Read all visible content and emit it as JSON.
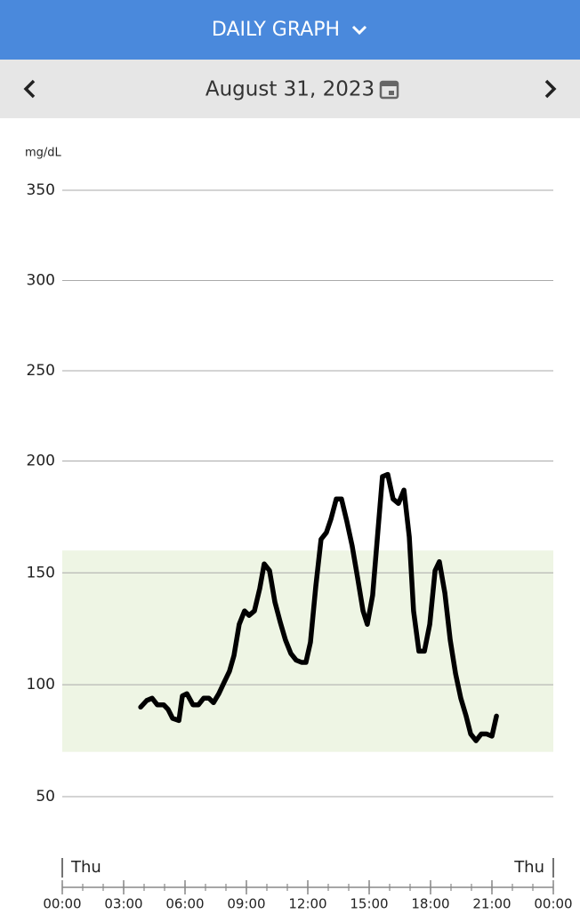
{
  "header": {
    "title": "DAILY GRAPH"
  },
  "date_nav": {
    "date": "August 31, 2023"
  },
  "chart_data": {
    "type": "line",
    "y_unit": "mg/dL",
    "ylim": [
      50,
      350
    ],
    "yticks": [
      50,
      100,
      150,
      200,
      250,
      300,
      350
    ],
    "y_break": 200,
    "y_break_stretch": 1.24,
    "grid": true,
    "target_range": [
      70,
      160
    ],
    "target_color": "#eef5e4",
    "color": "#000000",
    "xlim": [
      0,
      24
    ],
    "xticks": [
      {
        "value": 0,
        "label": "00:00"
      },
      {
        "value": 3,
        "label": "03:00"
      },
      {
        "value": 6,
        "label": "06:00"
      },
      {
        "value": 9,
        "label": "09:00"
      },
      {
        "value": 12,
        "label": "12:00"
      },
      {
        "value": 15,
        "label": "15:00"
      },
      {
        "value": 18,
        "label": "18:00"
      },
      {
        "value": 21,
        "label": "21:00"
      },
      {
        "value": 24,
        "label": "00:00"
      }
    ],
    "day_labels": [
      "Thu",
      "Thu"
    ],
    "x": [
      3.83,
      4.13,
      4.39,
      4.65,
      4.96,
      5.17,
      5.39,
      5.7,
      5.87,
      6.09,
      6.39,
      6.65,
      6.91,
      7.17,
      7.39,
      7.65,
      7.91,
      8.17,
      8.39,
      8.65,
      8.91,
      9.13,
      9.39,
      9.65,
      9.87,
      10.13,
      10.39,
      10.65,
      10.91,
      11.17,
      11.43,
      11.7,
      11.91,
      12.13,
      12.39,
      12.65,
      12.91,
      13.13,
      13.39,
      13.65,
      13.91,
      14.17,
      14.43,
      14.7,
      14.91,
      15.17,
      15.43,
      15.65,
      15.91,
      16.17,
      16.43,
      16.7,
      16.96,
      17.17,
      17.43,
      17.7,
      17.96,
      18.22,
      18.43,
      18.7,
      18.96,
      19.22,
      19.48,
      19.74,
      19.96,
      20.22,
      20.48,
      20.74,
      21.0,
      21.22
    ],
    "values": [
      90,
      93,
      94,
      91,
      91,
      89,
      85,
      84,
      95,
      96,
      91,
      91,
      94,
      94,
      92,
      96,
      101,
      106,
      113,
      127,
      133,
      131,
      133,
      143,
      154,
      151,
      137,
      128,
      120,
      114,
      111,
      110,
      110,
      119,
      144,
      165,
      168,
      174,
      183,
      183,
      173,
      162,
      148,
      133,
      127,
      140,
      169,
      193,
      194,
      183,
      181,
      187,
      166,
      133,
      115,
      115,
      127,
      151,
      155,
      141,
      120,
      105,
      94,
      86,
      78,
      75,
      78,
      78,
      77,
      86
    ]
  }
}
